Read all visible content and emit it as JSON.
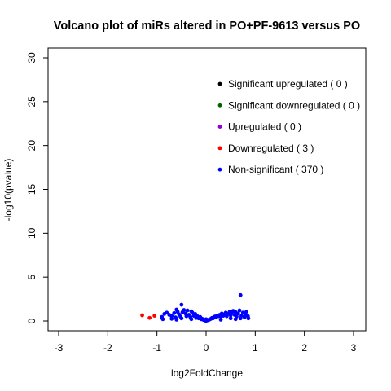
{
  "chart_data": {
    "type": "scatter",
    "title": "Volcano plot of miRs altered in PO+PF-9613 versus PO",
    "xlabel": "log2FoldChange",
    "ylabel": "-log10(pvalue)",
    "xlim": [
      -3,
      3
    ],
    "ylim": [
      0,
      30
    ],
    "x_ticks": [
      -3,
      -2,
      -1,
      0,
      1,
      2,
      3
    ],
    "y_ticks": [
      0,
      5,
      10,
      15,
      20,
      25,
      30
    ],
    "grid": false,
    "legend_position": "top-right",
    "series": [
      {
        "name": "Significant upregulated ( 0 )",
        "color": "#000000",
        "points": []
      },
      {
        "name": "Significant downregulated ( 0 )",
        "color": "#006400",
        "points": []
      },
      {
        "name": "Upregulated ( 0 )",
        "color": "#9400D3",
        "points": []
      },
      {
        "name": "Downregulated ( 3 )",
        "color": "#FF0000",
        "points": [
          [
            -1.3,
            0.65
          ],
          [
            -1.15,
            0.35
          ],
          [
            -1.05,
            0.6
          ]
        ]
      },
      {
        "name": "Non-significant ( 370 )",
        "color": "#0000FF",
        "points": [
          [
            0.7,
            2.95
          ],
          [
            -0.5,
            1.85
          ],
          [
            -0.6,
            1.3
          ],
          [
            -0.45,
            1.25
          ],
          [
            -0.3,
            1.1
          ],
          [
            -0.9,
            0.45
          ],
          [
            -0.85,
            0.8
          ],
          [
            -0.8,
            0.95
          ],
          [
            -0.75,
            0.7
          ],
          [
            -0.7,
            0.55
          ],
          [
            -0.65,
            0.9
          ],
          [
            -0.62,
            0.4
          ],
          [
            -0.58,
            1.05
          ],
          [
            -0.55,
            0.75
          ],
          [
            -0.52,
            0.5
          ],
          [
            -0.48,
            1.0
          ],
          [
            -0.42,
            0.85
          ],
          [
            -0.4,
            0.55
          ],
          [
            -0.38,
            1.2
          ],
          [
            -0.35,
            0.7
          ],
          [
            -0.32,
            0.45
          ],
          [
            -0.28,
            0.95
          ],
          [
            -0.25,
            0.6
          ],
          [
            -0.22,
            0.8
          ],
          [
            -0.2,
            0.35
          ],
          [
            -0.18,
            0.55
          ],
          [
            -0.15,
            0.3
          ],
          [
            -0.12,
            0.45
          ],
          [
            -0.1,
            0.2
          ],
          [
            -0.08,
            0.25
          ],
          [
            -0.06,
            0.15
          ],
          [
            -0.04,
            0.1
          ],
          [
            -0.02,
            0.05
          ],
          [
            0.0,
            0.03
          ],
          [
            0.02,
            0.06
          ],
          [
            0.04,
            0.1
          ],
          [
            0.06,
            0.14
          ],
          [
            0.08,
            0.2
          ],
          [
            0.1,
            0.25
          ],
          [
            0.12,
            0.35
          ],
          [
            0.14,
            0.3
          ],
          [
            0.16,
            0.45
          ],
          [
            0.18,
            0.5
          ],
          [
            0.2,
            0.4
          ],
          [
            0.22,
            0.6
          ],
          [
            0.25,
            0.55
          ],
          [
            0.28,
            0.7
          ],
          [
            0.3,
            0.5
          ],
          [
            0.32,
            0.85
          ],
          [
            0.35,
            0.6
          ],
          [
            0.38,
            0.75
          ],
          [
            0.4,
            0.95
          ],
          [
            0.42,
            0.55
          ],
          [
            0.45,
            0.8
          ],
          [
            0.48,
            1.05
          ],
          [
            0.5,
            0.65
          ],
          [
            0.52,
            0.9
          ],
          [
            0.55,
            1.15
          ],
          [
            0.58,
            0.7
          ],
          [
            0.6,
            1.0
          ],
          [
            0.62,
            0.5
          ],
          [
            0.65,
            0.85
          ],
          [
            0.68,
            1.2
          ],
          [
            0.72,
            0.6
          ],
          [
            0.75,
            0.95
          ],
          [
            0.78,
            0.45
          ],
          [
            0.8,
            0.75
          ],
          [
            0.82,
            1.05
          ],
          [
            0.85,
            0.55
          ],
          [
            0.86,
            0.3
          ],
          [
            -0.88,
            0.2
          ],
          [
            -0.6,
            0.15
          ],
          [
            -0.3,
            0.2
          ],
          [
            0.3,
            0.15
          ],
          [
            0.6,
            0.2
          ],
          [
            0.0,
            0.2
          ],
          [
            -0.5,
            0.3
          ],
          [
            0.5,
            0.3
          ],
          [
            -0.7,
            0.25
          ],
          [
            0.7,
            0.3
          ]
        ]
      }
    ]
  }
}
